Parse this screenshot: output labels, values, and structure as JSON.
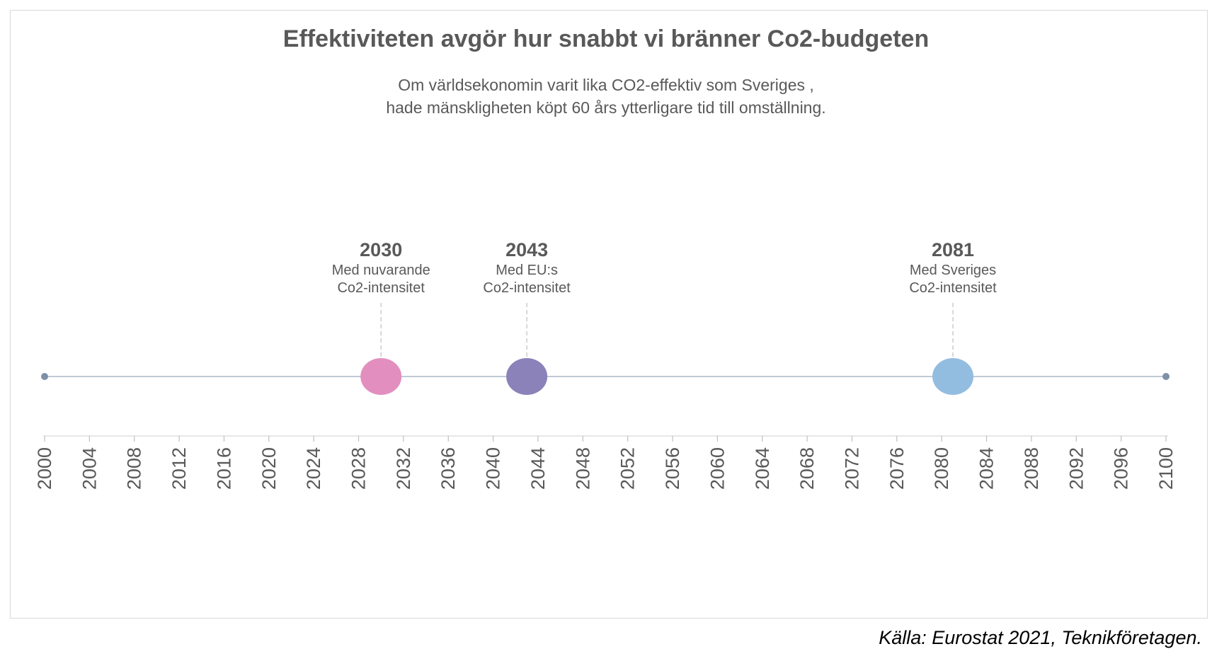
{
  "chart_data": {
    "type": "scatter",
    "title": "Effektiviteten avgör hur snabbt vi bränner Co2-budgeten",
    "subtitle": [
      "Om världsekonomin varit lika CO2-effektiv som Sveriges ,",
      "hade mänskligheten köpt 60 års ytterligare tid till omställning."
    ],
    "xlim": [
      2000,
      2100
    ],
    "x_ticks": [
      2000,
      2004,
      2008,
      2012,
      2016,
      2020,
      2024,
      2028,
      2032,
      2036,
      2040,
      2044,
      2048,
      2052,
      2056,
      2060,
      2064,
      2068,
      2072,
      2076,
      2080,
      2084,
      2088,
      2092,
      2096,
      2100
    ],
    "timeline_color": "#aab8c8",
    "endpoint_color": "#7f8fa8",
    "points": [
      {
        "x": 2030,
        "year_label": "2030",
        "desc": [
          "Med nuvarande",
          "Co2-intensitet"
        ],
        "color": "#e28fbf"
      },
      {
        "x": 2043,
        "year_label": "2043",
        "desc": [
          "Med EU:s",
          "Co2-intensitet"
        ],
        "color": "#8a82b8"
      },
      {
        "x": 2081,
        "year_label": "2081",
        "desc": [
          "Med Sveriges",
          "Co2-intensitet"
        ],
        "color": "#93bde0"
      }
    ]
  },
  "source": "Källa: Eurostat 2021, Teknikföretagen."
}
